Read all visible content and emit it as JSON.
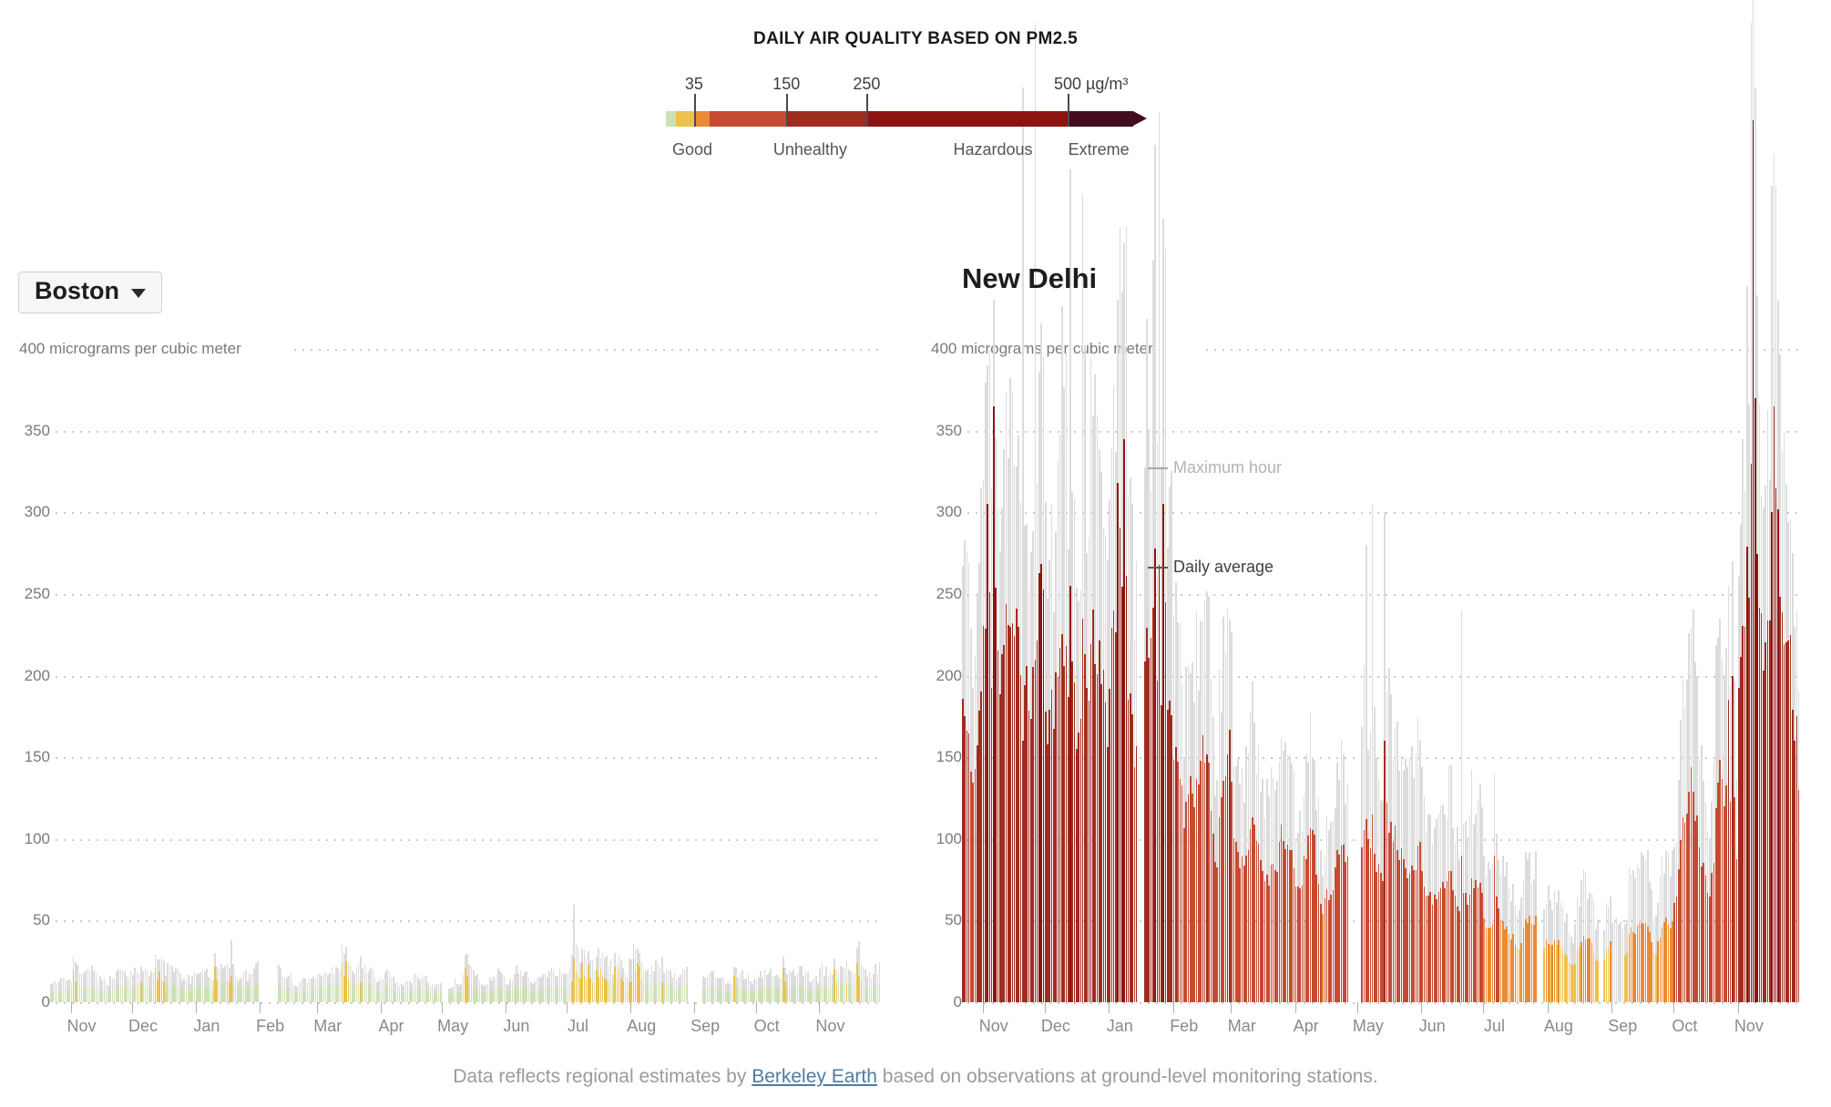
{
  "legend": {
    "title": "DAILY AIR QUALITY BASED ON PM2.5",
    "scale_end_units": 582,
    "segments": [
      {
        "upto": 12,
        "color": "#cfe0b8",
        "name": "good"
      },
      {
        "upto": 35,
        "color": "#ecc24c",
        "name": "moderate"
      },
      {
        "upto": 55,
        "color": "#ea8a33",
        "name": "unhealthy-sensitive"
      },
      {
        "upto": 150,
        "color": "#c64a32",
        "name": "unhealthy"
      },
      {
        "upto": 250,
        "color": "#a02c1f",
        "name": "very-unhealthy"
      },
      {
        "upto": 500,
        "color": "#8e1310",
        "name": "hazardous"
      },
      {
        "upto": 582,
        "color": "#420d1d",
        "name": "extreme"
      }
    ],
    "ticks": [
      {
        "label": "35",
        "value": 35,
        "shift": 0
      },
      {
        "label": "150",
        "value": 150,
        "shift": 0
      },
      {
        "label": "250",
        "value": 250,
        "shift": 0
      },
      {
        "label": "500 µg/m³",
        "value": 500,
        "shift": 26
      }
    ],
    "categories": [
      {
        "label": "Good",
        "pct": 5.5
      },
      {
        "label": "Unhealthy",
        "pct": 30
      },
      {
        "label": "Hazardous",
        "pct": 68
      },
      {
        "label": "Extreme",
        "pct": 90
      }
    ]
  },
  "chart_data": [
    {
      "type": "bar",
      "city": "Boston",
      "city_selector": true,
      "unit": "micrograms per cubic meter",
      "y_axis": {
        "max": 400,
        "step": 50,
        "top_label": "400 micrograms per cubic meter",
        "tick_labels": [
          "350",
          "300",
          "250",
          "200",
          "150",
          "100",
          "50"
        ],
        "zero_label": "0"
      },
      "x_axis": {
        "months": [
          "Nov",
          "Dec",
          "Jan",
          "Feb",
          "Mar",
          "Apr",
          "May",
          "Jun",
          "Jul",
          "Aug",
          "Sep",
          "Oct",
          "Nov"
        ]
      },
      "series": [
        {
          "name": "Maximum hour",
          "color": "#dcdcdc"
        },
        {
          "name": "Daily average",
          "color": "by-aqi-scale"
        }
      ],
      "notable": [
        "Daily averages mostly 5-15 (Good, green)",
        "Occasional Moderate days ~20-27 (yellow/orange)",
        "Early-July maximum-hour spike ~60"
      ],
      "daily": {
        "seed": 11,
        "months": [
          {
            "label": null,
            "days": 10,
            "avg": [
              4,
              10
            ],
            "maxf": [
              1.6,
              2.2
            ]
          },
          {
            "label": "Nov",
            "days": 30,
            "avg": [
              4,
              13
            ],
            "maxf": [
              1.6,
              2.3
            ],
            "spikes": [
              {
                "d": 2,
                "a": 20,
                "m": 28
              }
            ]
          },
          {
            "label": "Dec",
            "days": 31,
            "avg": [
              4,
              14
            ],
            "maxf": [
              1.6,
              2.3
            ],
            "spikes": [
              {
                "d": 12,
                "a": 21,
                "m": 29
              },
              {
                "d": 14,
                "a": 19,
                "m": 26
              }
            ]
          },
          {
            "label": "Jan",
            "days": 31,
            "avg": [
              4,
              15
            ],
            "maxf": [
              1.6,
              2.3
            ],
            "spikes": [
              {
                "d": 10,
                "a": 22,
                "m": 30
              },
              {
                "d": 18,
                "a": 16,
                "m": 38
              }
            ]
          },
          {
            "label": "Feb",
            "days": 28,
            "avg": [
              4,
              11
            ],
            "maxf": [
              1.6,
              2.2
            ],
            "gaps": [
              [
                1,
                9
              ]
            ]
          },
          {
            "label": "Mar",
            "days": 31,
            "avg": [
              5,
              14
            ],
            "maxf": [
              1.6,
              2.3
            ],
            "spikes": [
              {
                "d": 13,
                "a": 24,
                "m": 36
              },
              {
                "d": 15,
                "a": 25,
                "m": 34
              }
            ]
          },
          {
            "label": "Apr",
            "days": 30,
            "avg": [
              4,
              11
            ],
            "maxf": [
              1.6,
              2.2
            ]
          },
          {
            "label": "May",
            "days": 31,
            "avg": [
              4,
              12
            ],
            "maxf": [
              1.6,
              2.2
            ],
            "gaps": [
              [
                1,
                3
              ]
            ],
            "spikes": [
              {
                "d": 12,
                "a": 21,
                "m": 29
              }
            ]
          },
          {
            "label": "Jun",
            "days": 30,
            "avg": [
              5,
              13
            ],
            "maxf": [
              1.6,
              2.3
            ]
          },
          {
            "label": "Jul",
            "days": 31,
            "avg": [
              7,
              16
            ],
            "maxf": [
              1.6,
              2.3
            ],
            "spikes": [
              {
                "d": 4,
                "a": 27,
                "m": 60
              },
              {
                "d": 8,
                "a": 24,
                "m": 33
              },
              {
                "d": 11,
                "a": 23,
                "m": 31
              },
              {
                "d": 15,
                "a": 20,
                "m": 28
              },
              {
                "d": 17,
                "a": 20,
                "m": 27
              },
              {
                "d": 24,
                "a": 22,
                "m": 30
              },
              {
                "d": 26,
                "a": 21,
                "m": 29
              }
            ]
          },
          {
            "label": "Aug",
            "days": 31,
            "avg": [
              6,
              15
            ],
            "maxf": [
              1.6,
              2.3
            ],
            "gaps": [
              [
                29,
                31
              ]
            ],
            "spikes": [
              {
                "d": 2,
                "a": 26,
                "m": 36
              },
              {
                "d": 4,
                "a": 24,
                "m": 33
              },
              {
                "d": 5,
                "a": 22,
                "m": 30
              }
            ]
          },
          {
            "label": "Sep",
            "days": 30,
            "avg": [
              4,
              11
            ],
            "maxf": [
              1.6,
              2.2
            ],
            "gaps": [
              [
                1,
                4
              ]
            ],
            "spikes": [
              {
                "d": 20,
                "a": 16,
                "m": 22
              }
            ]
          },
          {
            "label": "Oct",
            "days": 31,
            "avg": [
              5,
              12
            ],
            "maxf": [
              1.6,
              2.2
            ],
            "spikes": [
              {
                "d": 14,
                "a": 21,
                "m": 28
              }
            ]
          },
          {
            "label": "Nov",
            "days": 30,
            "avg": [
              5,
              14
            ],
            "maxf": [
              1.6,
              2.3
            ],
            "spikes": [
              {
                "d": 8,
                "a": 20,
                "m": 27
              },
              {
                "d": 19,
                "a": 24,
                "m": 33
              }
            ]
          }
        ]
      }
    },
    {
      "type": "bar",
      "city": "New Delhi",
      "city_selector": false,
      "unit": "micrograms per cubic meter",
      "y_axis": {
        "max": 400,
        "step": 50,
        "top_label": "400 micrograms per cubic meter",
        "tick_labels": [
          "350",
          "300",
          "250",
          "200",
          "150",
          "100",
          "50"
        ],
        "zero_label": "0"
      },
      "x_axis": {
        "months": [
          "Nov",
          "Dec",
          "Jan",
          "Feb",
          "Mar",
          "Apr",
          "May",
          "Jun",
          "Jul",
          "Aug",
          "Sep",
          "Oct",
          "Nov"
        ]
      },
      "series": [
        {
          "name": "Maximum hour",
          "color": "#dcdcdc"
        },
        {
          "name": "Daily average",
          "color": "by-aqi-scale"
        }
      ],
      "annotations": [
        {
          "label": "Maximum hour",
          "value": 327,
          "text_color": "#b3b3b3",
          "line_color": "#a8a8a8"
        },
        {
          "label": "Daily average",
          "value": 266,
          "text_color": "#3f3f3f",
          "line_color": "#5a5a5a"
        }
      ],
      "notable": [
        "Winter daily averages 150-350 (dark red), maximum hours to ~600 overflowing plot top",
        "Early-November daily average spike ~365",
        "Second November extreme day ~540 (maroon) with max hour off-scale",
        "Summer (Jul-Aug) Moderate 20-45 (yellow/orange)",
        "Early September: maximum-hour-only gray bars ~48, no daily average"
      ],
      "daily": {
        "seed": 47,
        "months": [
          {
            "label": null,
            "days": 10,
            "avg": [
              120,
              230
            ],
            "maxf": [
              1.4,
              1.8
            ],
            "cap": 620
          },
          {
            "label": "Nov",
            "days": 30,
            "avg": [
              140,
              300
            ],
            "maxf": [
              1.35,
              1.7
            ],
            "cap": 620,
            "spikes": [
              {
                "d": 3,
                "a": 305,
                "m": 390
              },
              {
                "d": 6,
                "a": 365,
                "m": 430
              },
              {
                "d": 20,
                "a": 160,
                "m": 560
              },
              {
                "d": 26,
                "a": 210,
                "m": 600
              }
            ]
          },
          {
            "label": "Dec",
            "days": 31,
            "avg": [
              115,
              260
            ],
            "maxf": [
              1.4,
              1.95
            ],
            "cap": 620,
            "spikes": [
              {
                "d": 13,
                "a": 255,
                "m": 510
              },
              {
                "d": 19,
                "a": 235,
                "m": 495
              }
            ]
          },
          {
            "label": "Jan",
            "days": 31,
            "avg": [
              95,
              285
            ],
            "maxf": [
              1.4,
              1.9
            ],
            "cap": 620,
            "gaps": [
              [
                15,
                17
              ]
            ],
            "spikes": [
              {
                "d": 5,
                "a": 318,
                "m": 430
              },
              {
                "d": 8,
                "a": 345,
                "m": 465
              },
              {
                "d": 23,
                "a": 278,
                "m": 525
              },
              {
                "d": 25,
                "a": 268,
                "m": 545
              },
              {
                "d": 27,
                "a": 305,
                "m": 480
              }
            ]
          },
          {
            "label": "Feb",
            "days": 28,
            "avg": [
              70,
              195
            ],
            "maxf": [
              1.4,
              1.8
            ]
          },
          {
            "label": "Mar",
            "days": 31,
            "avg": [
              55,
              130
            ],
            "maxf": [
              1.4,
              1.8
            ]
          },
          {
            "label": "Apr",
            "days": 30,
            "avg": [
              45,
              115
            ],
            "maxf": [
              1.4,
              1.75
            ],
            "gaps": [
              [
                27,
                30
              ]
            ]
          },
          {
            "label": "May",
            "days": 31,
            "avg": [
              60,
              120
            ],
            "maxf": [
              1.5,
              2.0
            ],
            "gaps": [
              [
                1,
                2
              ]
            ],
            "spikes": [
              {
                "d": 5,
                "a": 112,
                "m": 280
              },
              {
                "d": 8,
                "a": 115,
                "m": 305
              },
              {
                "d": 14,
                "a": 160,
                "m": 300
              }
            ]
          },
          {
            "label": "Jun",
            "days": 30,
            "avg": [
              45,
              90
            ],
            "maxf": [
              1.5,
              1.9
            ],
            "spikes": [
              {
                "d": 20,
                "a": 90,
                "m": 240
              }
            ]
          },
          {
            "label": "Jul",
            "days": 31,
            "avg": [
              28,
              62
            ],
            "maxf": [
              1.5,
              1.9
            ],
            "gaps": [
              [
                27,
                29
              ]
            ],
            "spikes": [
              {
                "d": 6,
                "a": 90,
                "m": 140
              }
            ]
          },
          {
            "label": "Aug",
            "days": 31,
            "avg": [
              18,
              45
            ],
            "maxf": [
              1.6,
              2.1
            ],
            "gaps": [
              [
                26,
                27
              ]
            ]
          },
          {
            "label": "Sep",
            "days": 30,
            "avg": [
              24,
              62
            ],
            "maxf": [
              1.6,
              2.0
            ],
            "gray_only": [
              {
                "from": 1,
                "to": 6,
                "max": 48
              }
            ]
          },
          {
            "label": "Oct",
            "days": 31,
            "avg": [
              45,
              165
            ],
            "maxf": [
              1.5,
              1.9
            ],
            "spikes": [
              {
                "d": 27,
                "a": 185,
                "m": 255
              },
              {
                "d": 29,
                "a": 200,
                "m": 270
              }
            ]
          },
          {
            "label": "Nov",
            "days": 30,
            "avg": [
              125,
              330
            ],
            "maxf": [
              1.3,
              1.6
            ],
            "cap": 625,
            "spikes": [
              {
                "d": 7,
                "a": 330,
                "m": 600
              },
              {
                "d": 8,
                "a": 540,
                "m": 622
              },
              {
                "d": 9,
                "a": 370,
                "m": 560
              },
              {
                "d": 17,
                "a": 300,
                "m": 500
              },
              {
                "d": 18,
                "a": 365,
                "m": 520
              },
              {
                "d": 28,
                "a": 160,
                "m": 230
              },
              {
                "d": 29,
                "a": 175,
                "m": 240
              },
              {
                "d": 30,
                "a": 130,
                "m": 190
              }
            ]
          }
        ]
      }
    }
  ],
  "footer": {
    "prefix": "Data reflects regional estimates by ",
    "link_label": "Berkeley Earth",
    "suffix": " based on observations at ground-level monitoring stations."
  }
}
